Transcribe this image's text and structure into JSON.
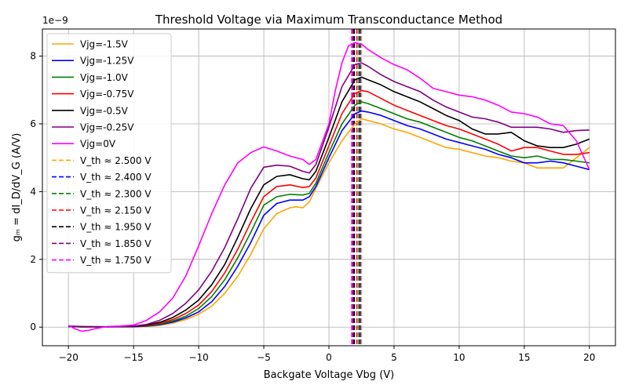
{
  "chart_data": {
    "type": "line",
    "title": "Threshold Voltage via Maximum Transconductance Method",
    "xlabel": "Backgate Voltage Vbg (V)",
    "ylabel": "gₘ = dI_D/dV_G (A/V)",
    "y_offset_label": "1e−9",
    "xlim": [
      -22,
      22
    ],
    "ylim": [
      -0.55,
      8.8
    ],
    "xticks": [
      -20,
      -15,
      -10,
      -5,
      0,
      5,
      10,
      15,
      20
    ],
    "yticks": [
      0,
      2,
      4,
      6,
      8
    ],
    "grid": true,
    "legend_position": "top-left",
    "series": [
      {
        "name": "Vjg=-1.5V",
        "color": "#ffa500",
        "points": [
          [
            -20,
            0.02
          ],
          [
            -19,
            0.01
          ],
          [
            -17,
            0.01
          ],
          [
            -15,
            0.01
          ],
          [
            -14,
            0.02
          ],
          [
            -13,
            0.05
          ],
          [
            -12,
            0.12
          ],
          [
            -11,
            0.22
          ],
          [
            -10,
            0.38
          ],
          [
            -9,
            0.62
          ],
          [
            -8,
            1.0
          ],
          [
            -7,
            1.5
          ],
          [
            -6,
            2.15
          ],
          [
            -5,
            2.9
          ],
          [
            -4,
            3.35
          ],
          [
            -3,
            3.52
          ],
          [
            -2.5,
            3.55
          ],
          [
            -2,
            3.52
          ],
          [
            -1.5,
            3.7
          ],
          [
            -1,
            4.1
          ],
          [
            0,
            4.85
          ],
          [
            1,
            5.5
          ],
          [
            2,
            6.0
          ],
          [
            2.5,
            6.15
          ],
          [
            3,
            6.1
          ],
          [
            4,
            6.0
          ],
          [
            5,
            5.85
          ],
          [
            6,
            5.75
          ],
          [
            7,
            5.6
          ],
          [
            8,
            5.45
          ],
          [
            9,
            5.3
          ],
          [
            10,
            5.25
          ],
          [
            11,
            5.15
          ],
          [
            12,
            5.05
          ],
          [
            13,
            5.0
          ],
          [
            14,
            4.9
          ],
          [
            15,
            4.85
          ],
          [
            16,
            4.7
          ],
          [
            17,
            4.7
          ],
          [
            18,
            4.7
          ],
          [
            19,
            5.0
          ],
          [
            20,
            5.3
          ]
        ]
      },
      {
        "name": "Vjg=-1.25V",
        "color": "#0000ff",
        "points": [
          [
            -20,
            0.02
          ],
          [
            -19,
            0.01
          ],
          [
            -17,
            0.01
          ],
          [
            -15,
            0.01
          ],
          [
            -14,
            0.03
          ],
          [
            -13,
            0.07
          ],
          [
            -12,
            0.15
          ],
          [
            -11,
            0.27
          ],
          [
            -10,
            0.45
          ],
          [
            -9,
            0.75
          ],
          [
            -8,
            1.2
          ],
          [
            -7,
            1.8
          ],
          [
            -6,
            2.5
          ],
          [
            -5,
            3.3
          ],
          [
            -4,
            3.65
          ],
          [
            -3,
            3.75
          ],
          [
            -2,
            3.75
          ],
          [
            -1.5,
            3.85
          ],
          [
            -1,
            4.15
          ],
          [
            0,
            5.0
          ],
          [
            1,
            5.8
          ],
          [
            2,
            6.3
          ],
          [
            2.5,
            6.38
          ],
          [
            3,
            6.35
          ],
          [
            4,
            6.25
          ],
          [
            5,
            6.1
          ],
          [
            6,
            5.95
          ],
          [
            7,
            5.85
          ],
          [
            8,
            5.7
          ],
          [
            9,
            5.55
          ],
          [
            10,
            5.45
          ],
          [
            11,
            5.35
          ],
          [
            12,
            5.25
          ],
          [
            13,
            5.1
          ],
          [
            14,
            5.0
          ],
          [
            15,
            4.85
          ],
          [
            16,
            4.85
          ],
          [
            17,
            4.9
          ],
          [
            18,
            4.85
          ],
          [
            19,
            4.75
          ],
          [
            20,
            4.65
          ]
        ]
      },
      {
        "name": "Vjg=-1.0V",
        "color": "#008000",
        "points": [
          [
            -20,
            0.02
          ],
          [
            -19,
            0.01
          ],
          [
            -17,
            0.01
          ],
          [
            -15,
            0.02
          ],
          [
            -14,
            0.04
          ],
          [
            -13,
            0.09
          ],
          [
            -12,
            0.18
          ],
          [
            -11,
            0.32
          ],
          [
            -10,
            0.55
          ],
          [
            -9,
            0.9
          ],
          [
            -8,
            1.4
          ],
          [
            -7,
            2.05
          ],
          [
            -6,
            2.8
          ],
          [
            -5,
            3.6
          ],
          [
            -4,
            3.85
          ],
          [
            -3,
            3.92
          ],
          [
            -2,
            3.9
          ],
          [
            -1.5,
            3.95
          ],
          [
            -1,
            4.25
          ],
          [
            0,
            5.15
          ],
          [
            1,
            6.0
          ],
          [
            2,
            6.55
          ],
          [
            2.5,
            6.65
          ],
          [
            3,
            6.6
          ],
          [
            4,
            6.45
          ],
          [
            5,
            6.3
          ],
          [
            6,
            6.15
          ],
          [
            7,
            6.05
          ],
          [
            8,
            5.9
          ],
          [
            9,
            5.75
          ],
          [
            10,
            5.6
          ],
          [
            11,
            5.5
          ],
          [
            12,
            5.35
          ],
          [
            13,
            5.2
          ],
          [
            14,
            5.05
          ],
          [
            15,
            5.0
          ],
          [
            16,
            5.05
          ],
          [
            17,
            4.95
          ],
          [
            18,
            4.95
          ],
          [
            19,
            4.9
          ],
          [
            20,
            4.85
          ]
        ]
      },
      {
        "name": "Vjg=-0.75V",
        "color": "#ff0000",
        "points": [
          [
            -20,
            0.02
          ],
          [
            -19,
            0.01
          ],
          [
            -17,
            0.01
          ],
          [
            -15,
            0.02
          ],
          [
            -14,
            0.05
          ],
          [
            -13,
            0.11
          ],
          [
            -12,
            0.22
          ],
          [
            -11,
            0.4
          ],
          [
            -10,
            0.65
          ],
          [
            -9,
            1.05
          ],
          [
            -8,
            1.6
          ],
          [
            -7,
            2.3
          ],
          [
            -6,
            3.1
          ],
          [
            -5,
            3.85
          ],
          [
            -4,
            4.15
          ],
          [
            -3,
            4.2
          ],
          [
            -2,
            4.12
          ],
          [
            -1.5,
            4.15
          ],
          [
            -1,
            4.4
          ],
          [
            0,
            5.35
          ],
          [
            1,
            6.3
          ],
          [
            2,
            6.9
          ],
          [
            2.5,
            6.98
          ],
          [
            3,
            6.95
          ],
          [
            4,
            6.75
          ],
          [
            5,
            6.55
          ],
          [
            6,
            6.4
          ],
          [
            7,
            6.25
          ],
          [
            8,
            6.1
          ],
          [
            9,
            5.95
          ],
          [
            10,
            5.85
          ],
          [
            11,
            5.7
          ],
          [
            12,
            5.55
          ],
          [
            13,
            5.4
          ],
          [
            14,
            5.2
          ],
          [
            15,
            5.3
          ],
          [
            16,
            5.3
          ],
          [
            17,
            5.2
          ],
          [
            18,
            5.1
          ],
          [
            19,
            5.1
          ],
          [
            20,
            5.15
          ]
        ]
      },
      {
        "name": "Vjg=-0.5V",
        "color": "#000000",
        "points": [
          [
            -20,
            0.02
          ],
          [
            -19,
            0.01
          ],
          [
            -17,
            0.01
          ],
          [
            -15,
            0.02
          ],
          [
            -14,
            0.06
          ],
          [
            -13,
            0.14
          ],
          [
            -12,
            0.28
          ],
          [
            -11,
            0.5
          ],
          [
            -10,
            0.8
          ],
          [
            -9,
            1.25
          ],
          [
            -8,
            1.85
          ],
          [
            -7,
            2.65
          ],
          [
            -6,
            3.5
          ],
          [
            -5,
            4.2
          ],
          [
            -4,
            4.45
          ],
          [
            -3,
            4.5
          ],
          [
            -2,
            4.38
          ],
          [
            -1.5,
            4.35
          ],
          [
            -1,
            4.6
          ],
          [
            0,
            5.6
          ],
          [
            1,
            6.65
          ],
          [
            2,
            7.3
          ],
          [
            2.5,
            7.38
          ],
          [
            3,
            7.3
          ],
          [
            4,
            7.15
          ],
          [
            5,
            6.95
          ],
          [
            6,
            6.8
          ],
          [
            7,
            6.65
          ],
          [
            8,
            6.45
          ],
          [
            9,
            6.25
          ],
          [
            10,
            6.1
          ],
          [
            11,
            5.85
          ],
          [
            12,
            5.7
          ],
          [
            13,
            5.7
          ],
          [
            14,
            5.75
          ],
          [
            15,
            5.5
          ],
          [
            16,
            5.35
          ],
          [
            17,
            5.3
          ],
          [
            18,
            5.3
          ],
          [
            19,
            5.4
          ],
          [
            20,
            5.55
          ]
        ]
      },
      {
        "name": "Vjg=-0.25V",
        "color": "#800080",
        "points": [
          [
            -20,
            0.03
          ],
          [
            -19,
            0.02
          ],
          [
            -17,
            0.01
          ],
          [
            -15,
            0.03
          ],
          [
            -14,
            0.08
          ],
          [
            -13,
            0.2
          ],
          [
            -12,
            0.4
          ],
          [
            -11,
            0.7
          ],
          [
            -10,
            1.1
          ],
          [
            -9,
            1.65
          ],
          [
            -8,
            2.35
          ],
          [
            -7,
            3.2
          ],
          [
            -6,
            4.1
          ],
          [
            -5,
            4.72
          ],
          [
            -4,
            4.78
          ],
          [
            -3,
            4.75
          ],
          [
            -2,
            4.6
          ],
          [
            -1.5,
            4.55
          ],
          [
            -1,
            4.8
          ],
          [
            0,
            5.9
          ],
          [
            1,
            7.1
          ],
          [
            2,
            7.75
          ],
          [
            2.5,
            7.8
          ],
          [
            3,
            7.7
          ],
          [
            4,
            7.45
          ],
          [
            5,
            7.25
          ],
          [
            6,
            7.1
          ],
          [
            7,
            6.95
          ],
          [
            8,
            6.7
          ],
          [
            9,
            6.5
          ],
          [
            10,
            6.35
          ],
          [
            11,
            6.2
          ],
          [
            12,
            6.15
          ],
          [
            13,
            6.05
          ],
          [
            14,
            5.9
          ],
          [
            15,
            5.9
          ],
          [
            16,
            5.9
          ],
          [
            17,
            5.85
          ],
          [
            18,
            5.75
          ],
          [
            19,
            5.8
          ],
          [
            20,
            5.82
          ]
        ]
      },
      {
        "name": "Vjg=0V",
        "color": "#ff00ff",
        "points": [
          [
            -20,
            0.05
          ],
          [
            -19.5,
            -0.05
          ],
          [
            -19,
            -0.12
          ],
          [
            -18.5,
            -0.1
          ],
          [
            -18,
            -0.05
          ],
          [
            -17,
            0.02
          ],
          [
            -16,
            0.03
          ],
          [
            -15,
            0.06
          ],
          [
            -14,
            0.2
          ],
          [
            -13,
            0.45
          ],
          [
            -12,
            0.85
          ],
          [
            -11,
            1.5
          ],
          [
            -10,
            2.4
          ],
          [
            -9,
            3.35
          ],
          [
            -8,
            4.2
          ],
          [
            -7,
            4.85
          ],
          [
            -6,
            5.15
          ],
          [
            -5,
            5.32
          ],
          [
            -4,
            5.2
          ],
          [
            -3,
            5.05
          ],
          [
            -2,
            4.95
          ],
          [
            -1.5,
            4.8
          ],
          [
            -1,
            4.95
          ],
          [
            0,
            6.0
          ],
          [
            0.5,
            7.0
          ],
          [
            1,
            7.8
          ],
          [
            1.5,
            8.3
          ],
          [
            2,
            8.4
          ],
          [
            2.5,
            8.35
          ],
          [
            3,
            8.2
          ],
          [
            4,
            7.95
          ],
          [
            5,
            7.75
          ],
          [
            6,
            7.6
          ],
          [
            7,
            7.35
          ],
          [
            8,
            7.05
          ],
          [
            9,
            6.95
          ],
          [
            10,
            6.85
          ],
          [
            11,
            6.8
          ],
          [
            12,
            6.7
          ],
          [
            13,
            6.55
          ],
          [
            14,
            6.35
          ],
          [
            15,
            6.3
          ],
          [
            16,
            6.2
          ],
          [
            17,
            6.0
          ],
          [
            18,
            5.95
          ],
          [
            19,
            5.5
          ],
          [
            20,
            4.65
          ]
        ]
      }
    ],
    "vlines": [
      {
        "name": "V_th ≈ 2.500 V",
        "x": 2.5,
        "color": "#ffa500"
      },
      {
        "name": "V_th ≈ 2.400 V",
        "x": 2.4,
        "color": "#0000ff"
      },
      {
        "name": "V_th ≈ 2.300 V",
        "x": 2.3,
        "color": "#008000"
      },
      {
        "name": "V_th ≈ 2.150 V",
        "x": 2.15,
        "color": "#ff0000"
      },
      {
        "name": "V_th ≈ 1.950 V",
        "x": 1.95,
        "color": "#000000"
      },
      {
        "name": "V_th ≈ 1.850 V",
        "x": 1.85,
        "color": "#800080"
      },
      {
        "name": "V_th ≈ 1.750 V",
        "x": 1.75,
        "color": "#ff00ff"
      }
    ]
  }
}
